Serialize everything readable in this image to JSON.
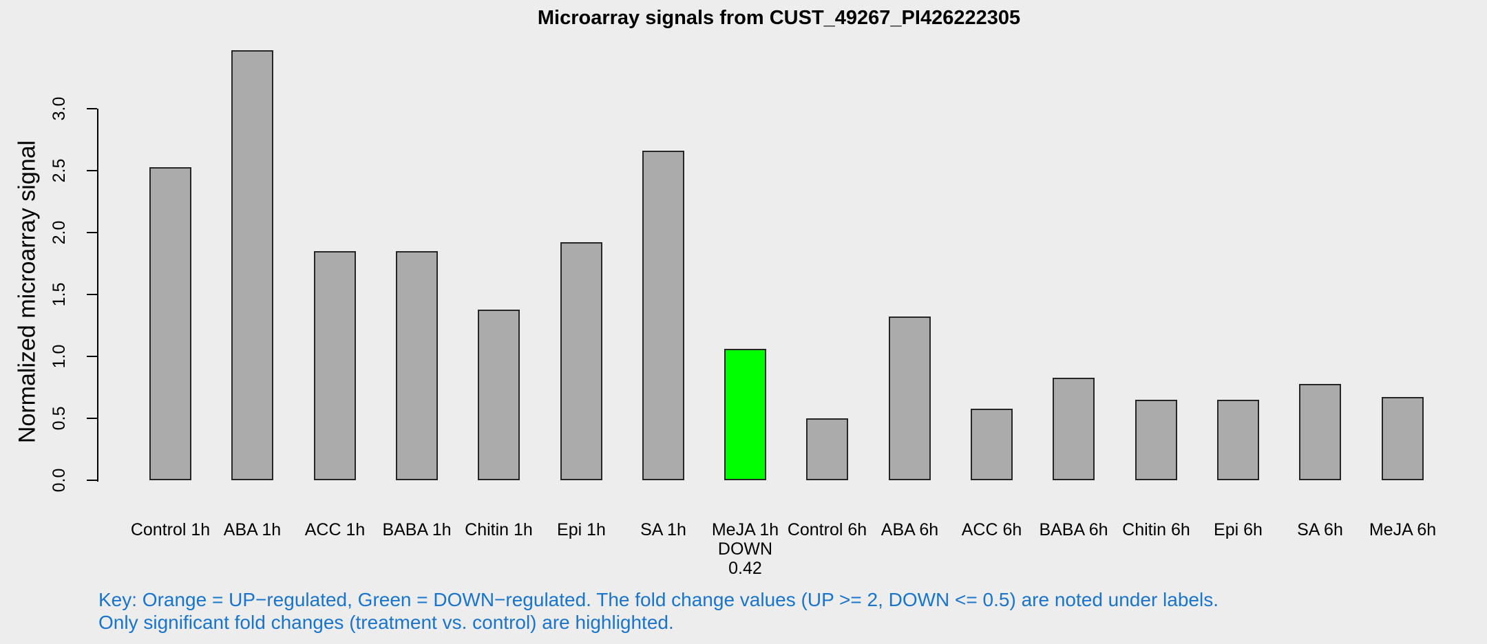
{
  "chart_data": {
    "type": "bar",
    "title": "Microarray signals from CUST_49267_PI426222305",
    "ylabel": "Normalized microarray signal",
    "xlabel": "",
    "ylim": [
      0,
      3.5
    ],
    "yticks": [
      "0.0",
      "0.5",
      "1.0",
      "1.5",
      "2.0",
      "2.5",
      "3.0"
    ],
    "grid": false,
    "legend_position": "none",
    "background_color": "#EDEDED",
    "bar_default_color": "#ABABAB",
    "bar_border_color": "#262626",
    "up_color_name": "Orange",
    "down_color_name": "Green",
    "down_color": "#00FF00",
    "bars": [
      {
        "label": "Control 1h",
        "value": 2.53
      },
      {
        "label": "ABA 1h",
        "value": 3.47
      },
      {
        "label": "ACC 1h",
        "value": 1.85
      },
      {
        "label": "BABA 1h",
        "value": 1.85
      },
      {
        "label": "Chitin 1h",
        "value": 1.38
      },
      {
        "label": "Epi 1h",
        "value": 1.92
      },
      {
        "label": "SA 1h",
        "value": 2.66
      },
      {
        "label": "MeJA 1h",
        "value": 1.06,
        "color": "#00FF00",
        "regulation": "DOWN",
        "fold_change": "0.42"
      },
      {
        "label": "Control 6h",
        "value": 0.5
      },
      {
        "label": "ABA 6h",
        "value": 1.32
      },
      {
        "label": "ACC 6h",
        "value": 0.58
      },
      {
        "label": "BABA 6h",
        "value": 0.83
      },
      {
        "label": "Chitin 6h",
        "value": 0.65
      },
      {
        "label": "Epi 6h",
        "value": 0.65
      },
      {
        "label": "SA 6h",
        "value": 0.78
      },
      {
        "label": "MeJA 6h",
        "value": 0.67
      }
    ]
  },
  "key": {
    "line1": "Key: Orange = UP−regulated, Green = DOWN−regulated. The fold change values (UP >= 2, DOWN <= 0.5) are noted under labels.",
    "line2": "Only significant fold changes (treatment vs. control) are highlighted.",
    "color": "#1874CD"
  }
}
